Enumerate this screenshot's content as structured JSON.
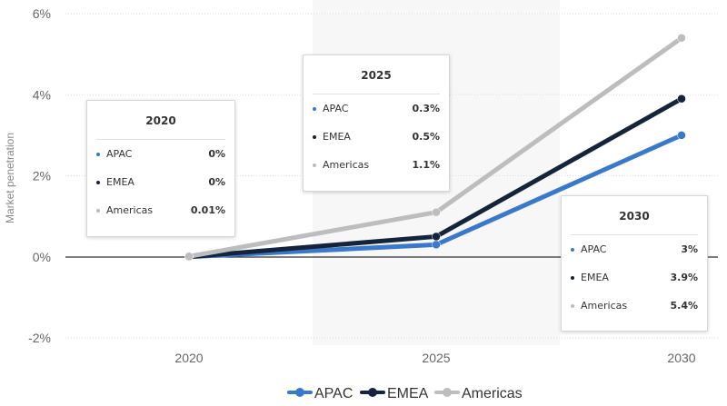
{
  "chart_data": {
    "type": "line",
    "x": [
      2020,
      2025,
      2030
    ],
    "ylabel": "Market penetration",
    "yticks": [
      "-2%",
      "0%",
      "2%",
      "4%",
      "6%"
    ],
    "ylim": [
      -2,
      6
    ],
    "unit": "%",
    "grid": true,
    "legend_position": "bottom-center",
    "series": [
      {
        "name": "APAC",
        "color": "#3a78cc",
        "values": [
          0,
          0.3,
          3
        ]
      },
      {
        "name": "EMEA",
        "color": "#14243a",
        "values": [
          0,
          0.5,
          3.9
        ]
      },
      {
        "name": "Americas",
        "color": "#bdbdbd",
        "values": [
          0.01,
          1.1,
          5.4
        ]
      }
    ]
  },
  "tooltips": [
    {
      "title": "2020",
      "rows": [
        {
          "name": "APAC",
          "value": "0%",
          "color": "#3a78cc"
        },
        {
          "name": "EMEA",
          "value": "0%",
          "color": "#14243a"
        },
        {
          "name": "Americas",
          "value": "0.01%",
          "color": "#bdbdbd"
        }
      ]
    },
    {
      "title": "2025",
      "rows": [
        {
          "name": "APAC",
          "value": "0.3%",
          "color": "#3a78cc"
        },
        {
          "name": "EMEA",
          "value": "0.5%",
          "color": "#14243a"
        },
        {
          "name": "Americas",
          "value": "1.1%",
          "color": "#bdbdbd"
        }
      ]
    },
    {
      "title": "2030",
      "rows": [
        {
          "name": "APAC",
          "value": "3%",
          "color": "#3a78cc"
        },
        {
          "name": "EMEA",
          "value": "3.9%",
          "color": "#14243a"
        },
        {
          "name": "Americas",
          "value": "5.4%",
          "color": "#bdbdbd"
        }
      ]
    }
  ]
}
